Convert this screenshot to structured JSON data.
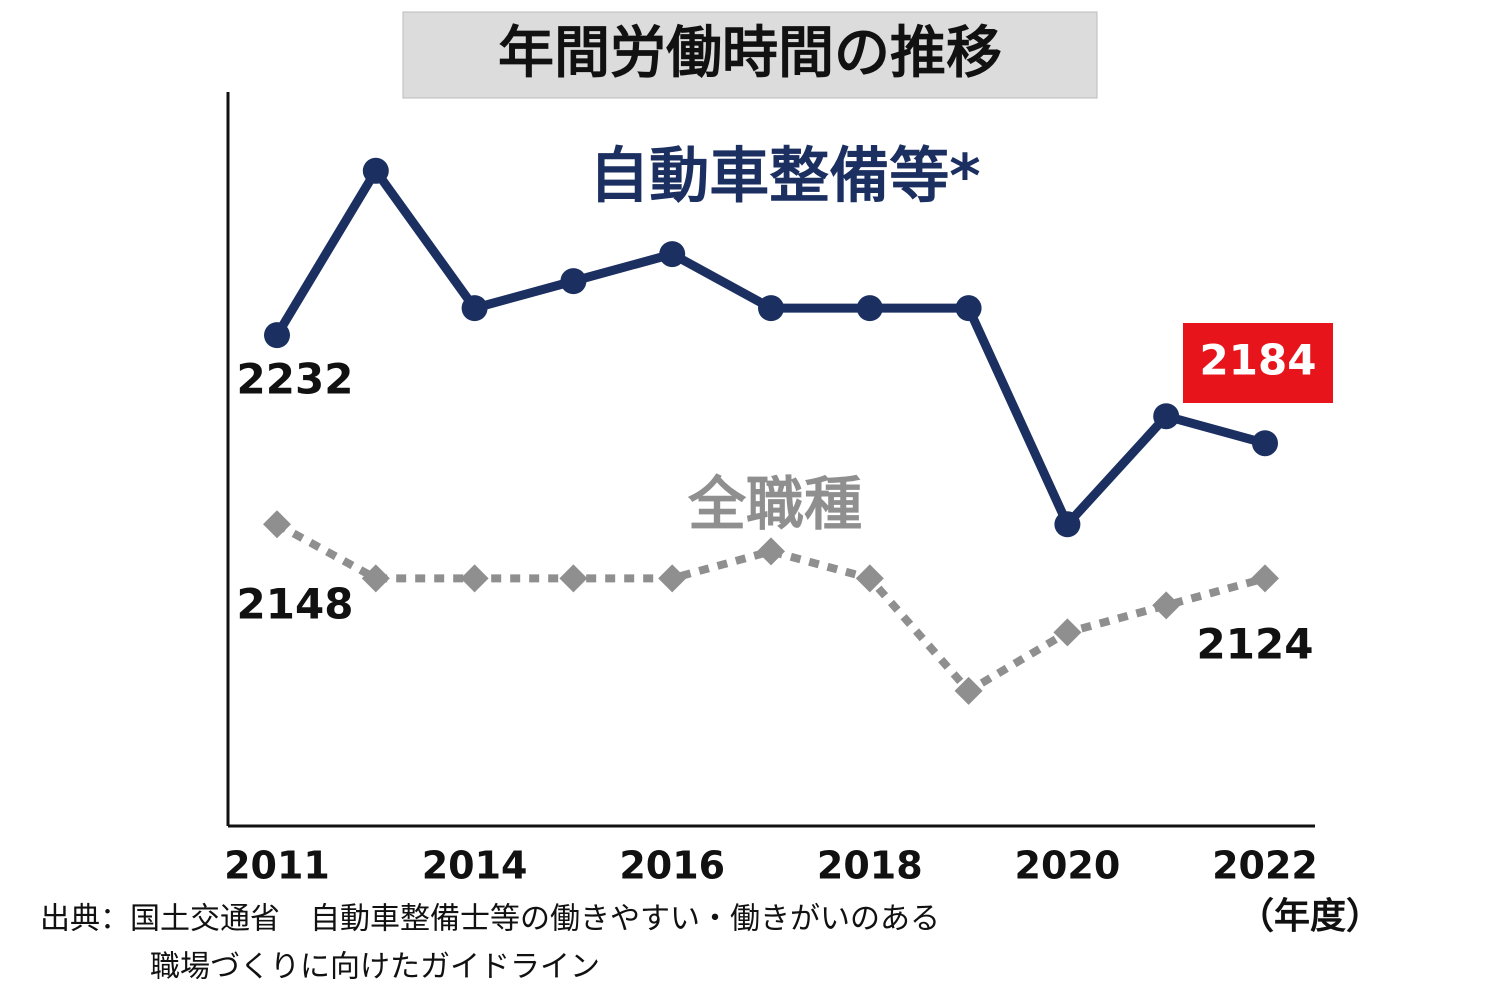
{
  "chart_data": {
    "type": "line",
    "title": "年間労働時間の推移",
    "categories": [
      "2011",
      null,
      "2014",
      null,
      "2016",
      null,
      "2018",
      null,
      "2020",
      null,
      "2022"
    ],
    "x_unit": "（年度）",
    "series": [
      {
        "name": "自動車整備等*",
        "color": "#1b2f61",
        "marker": "circle",
        "dash": false,
        "values": [
          2232,
          2305,
          2244,
          2256,
          2268,
          2244,
          2244,
          2244,
          2148,
          2196,
          2184
        ]
      },
      {
        "name": "全職種",
        "color": "#8f8f8f",
        "marker": "diamond",
        "dash": true,
        "values": [
          2148,
          2124,
          2124,
          2124,
          2124,
          2136,
          2124,
          2074,
          2100,
          2112,
          2124
        ]
      }
    ],
    "ylim": [
      2014,
      2340
    ],
    "source": [
      "出典：国土交通省　自動車整備士等の働きやすい・働きがいのある",
      "職場づくりに向けたガイドライン"
    ]
  }
}
